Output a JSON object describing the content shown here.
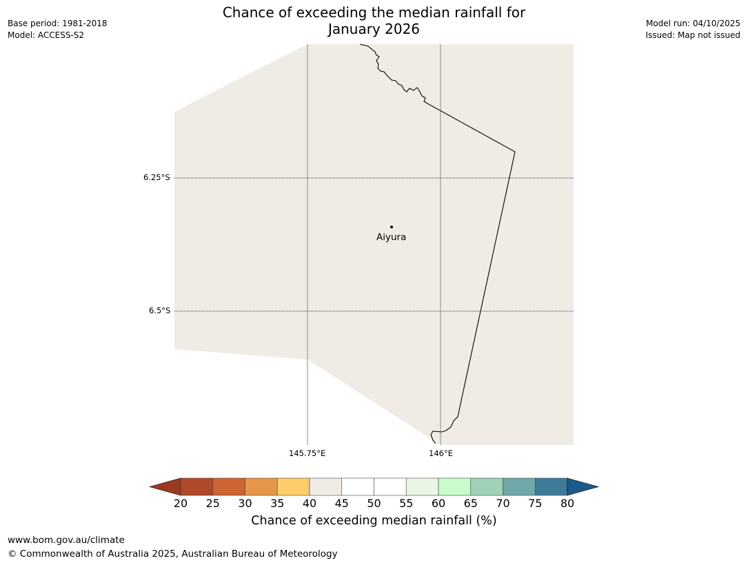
{
  "header": {
    "title_line1": "Chance of exceeding the median rainfall for",
    "title_line2": "January 2026",
    "base_period": "Base period: 1981-2018",
    "model": "Model: ACCESS-S2",
    "model_run": "Model run: 04/10/2025",
    "issued": "Issued: Map not issued"
  },
  "map": {
    "land_color": "#f0ebe5",
    "gridline_color": "#888888",
    "lon_labels": [
      "145.75°E",
      "146°E"
    ],
    "lat_labels": [
      "6.25°S",
      "6.5°S"
    ],
    "town": {
      "name": "Aiyura"
    }
  },
  "colorbar": {
    "title": "Chance of exceeding median rainfall (%)",
    "ticks": [
      "20",
      "25",
      "30",
      "35",
      "40",
      "45",
      "50",
      "55",
      "60",
      "65",
      "70",
      "75",
      "80"
    ],
    "colors": [
      "#b0482a",
      "#cf6433",
      "#e49649",
      "#fdcd6a",
      "#f0ebe5",
      "#ffffff",
      "#ffffff",
      "#e9f6e5",
      "#c9fccb",
      "#9dd2b8",
      "#6ea8a8",
      "#3f7b98"
    ],
    "under_color": "#9a3a22",
    "over_color": "#1c5a8c"
  },
  "footer": {
    "url": "www.bom.gov.au/climate",
    "copyright": "© Commonwealth of Australia 2025, Australian Bureau of Meteorology"
  }
}
